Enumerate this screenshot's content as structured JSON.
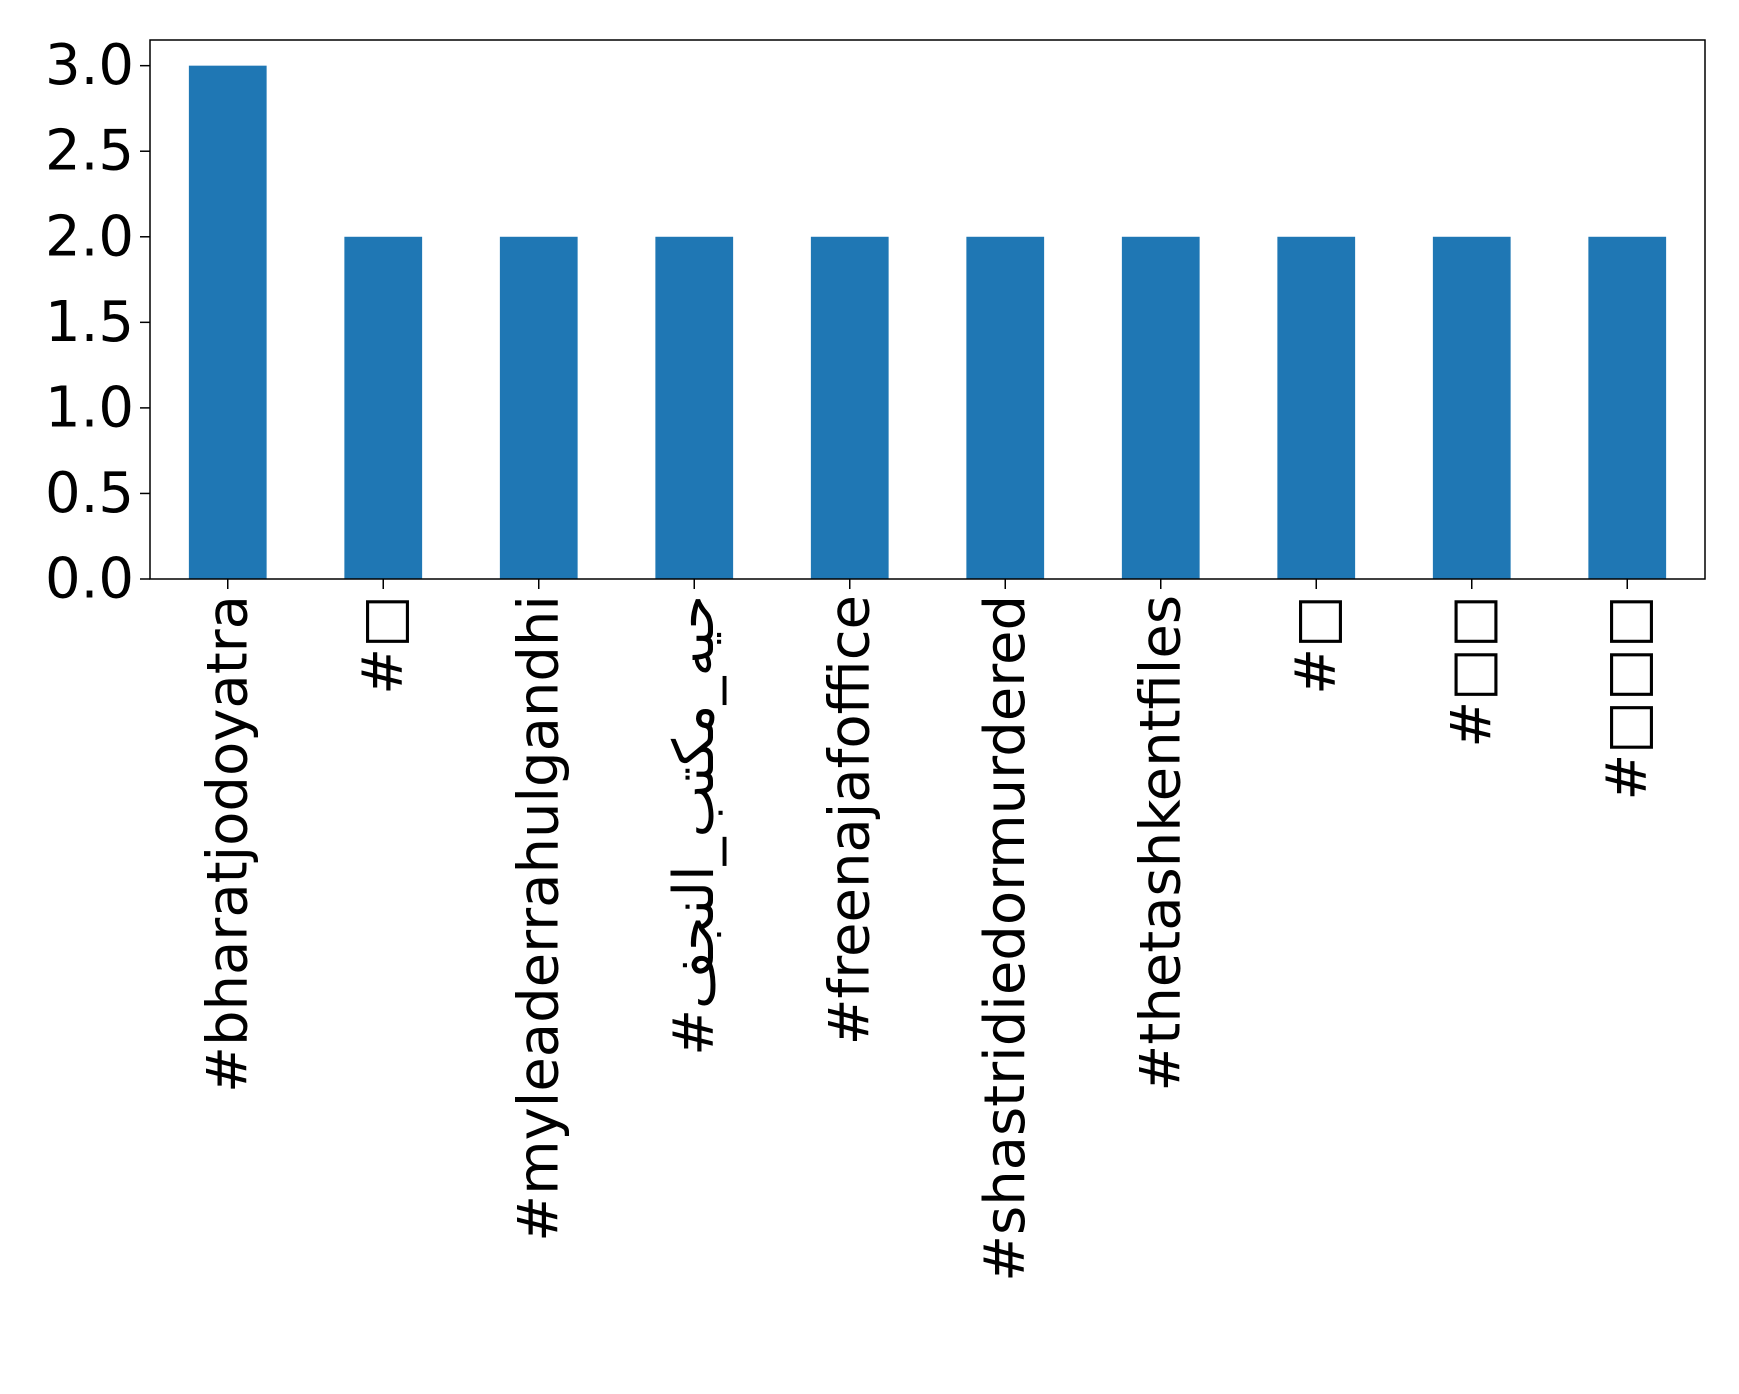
{
  "chart_data": {
    "type": "bar",
    "categories": [
      "#bharatjodoyatra",
      "#□",
      "#myleaderrahulgandhi",
      "#حيه_مكتب_النجف",
      "#freenajafoffice",
      "#shastridiedormurdered",
      "#thetashkentfiles",
      "#□",
      "#□□",
      "#□□□"
    ],
    "values": [
      3,
      2,
      2,
      2,
      2,
      2,
      2,
      2,
      2,
      2
    ],
    "ylim": [
      0,
      3.15
    ],
    "yticks": [
      "0.0",
      "0.5",
      "1.0",
      "1.5",
      "2.0",
      "2.5",
      "3.0"
    ],
    "bar_color": "#1f77b4",
    "title": "",
    "xlabel": "",
    "ylabel": "",
    "grid": false,
    "legend": false
  }
}
